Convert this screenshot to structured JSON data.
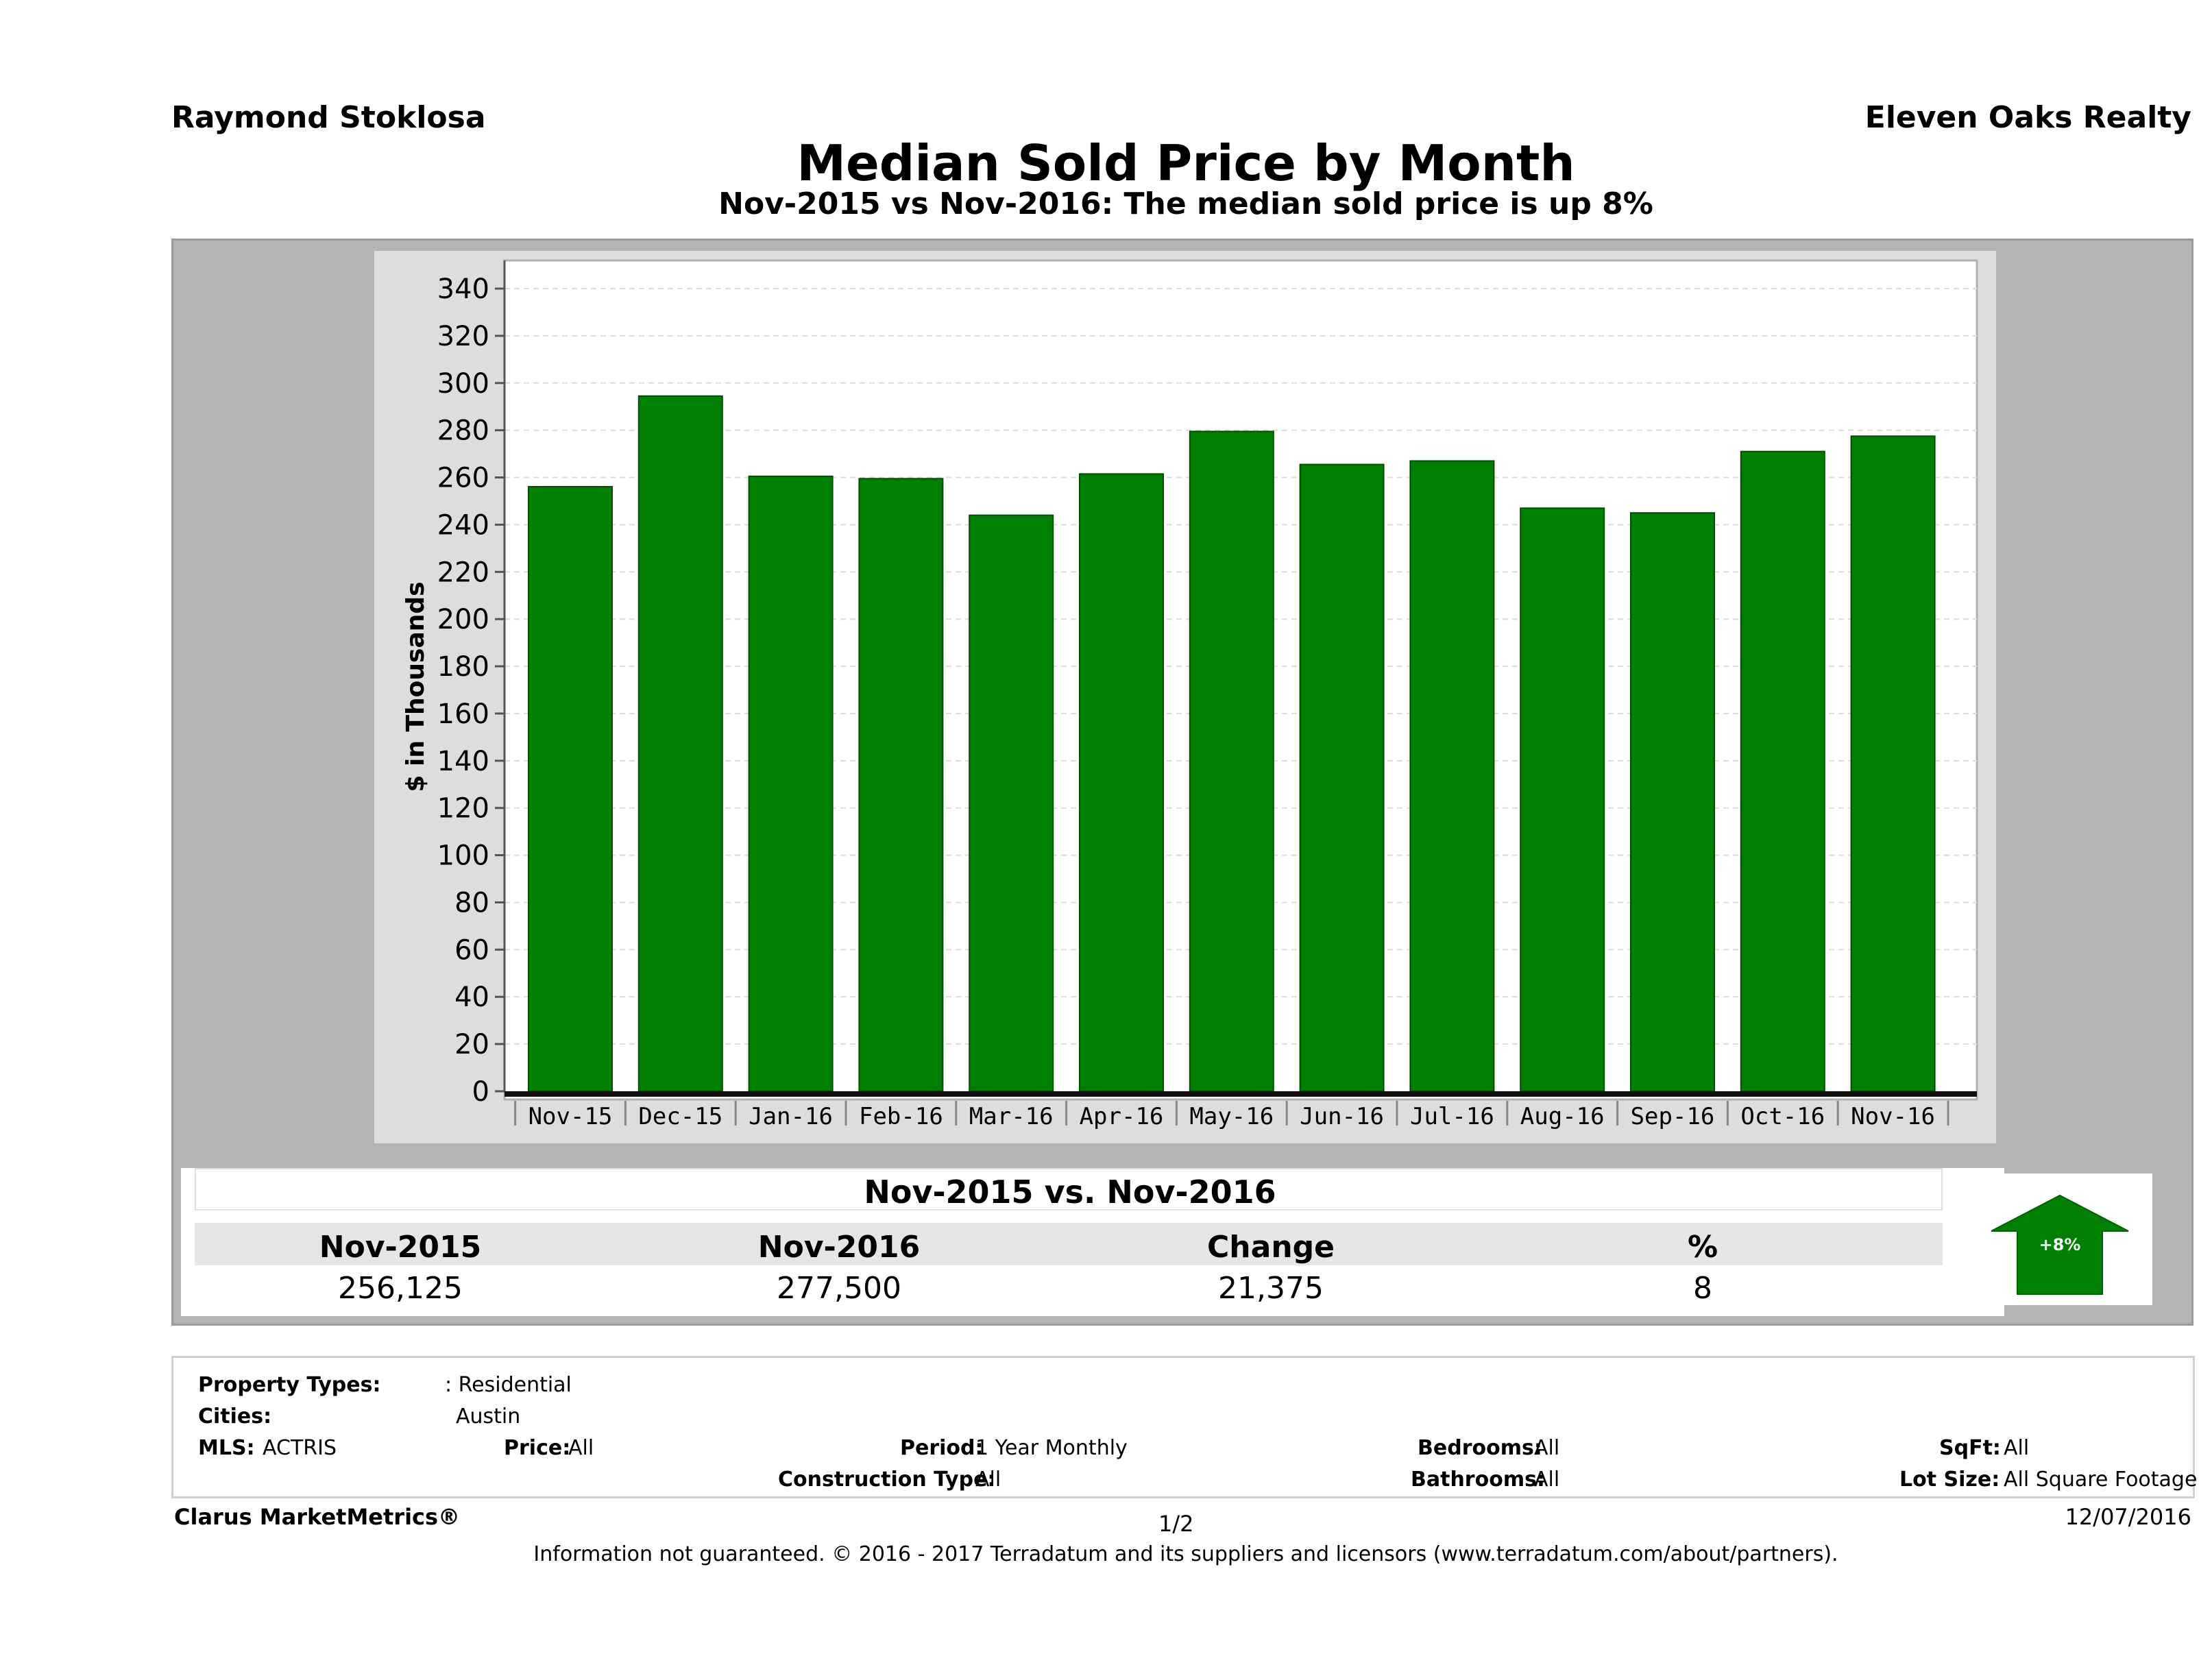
{
  "header": {
    "agent": "Raymond Stoklosa",
    "brokerage": "Eleven Oaks Realty",
    "title": "Median Sold Price by Month",
    "subtitle": "Nov-2015 vs Nov-2016: The median sold price is up 8%"
  },
  "chart_data": {
    "type": "bar",
    "categories": [
      "Nov-15",
      "Dec-15",
      "Jan-16",
      "Feb-16",
      "Mar-16",
      "Apr-16",
      "May-16",
      "Jun-16",
      "Jul-16",
      "Aug-16",
      "Sep-16",
      "Oct-16",
      "Nov-16"
    ],
    "values": [
      256.1,
      294.5,
      260.5,
      259.5,
      244,
      261.5,
      279.5,
      265.5,
      267,
      247,
      245,
      271,
      277.5
    ],
    "ylabel": "$ in Thousands",
    "ylim": [
      0,
      350
    ],
    "yticks": [
      0,
      20,
      40,
      60,
      80,
      100,
      120,
      140,
      160,
      180,
      200,
      220,
      240,
      260,
      280,
      300,
      320,
      340
    ],
    "grid": true,
    "bar_color": "#008000"
  },
  "summary": {
    "title": "Nov-2015 vs. Nov-2016",
    "headers": [
      "Nov-2015",
      "Nov-2016",
      "Change",
      "%"
    ],
    "values": [
      "256,125",
      "277,500",
      "21,375",
      "8"
    ],
    "badge": "+8%",
    "badge_color": "#008000"
  },
  "criteria": {
    "property_types_label": "Property Types:",
    "property_types_value": ": Residential",
    "cities_label": "Cities:",
    "cities_value": "Austin",
    "mls_label": "MLS:",
    "mls_value": "ACTRIS",
    "price_label": "Price:",
    "price_value": "All",
    "period_label": "Period:",
    "period_value": "1 Year Monthly",
    "bedrooms_label": "Bedrooms:",
    "bedrooms_value": "All",
    "sqft_label": "SqFt:",
    "sqft_value": "All",
    "construction_label": "Construction Type:",
    "construction_value": "All",
    "bathrooms_label": "Bathrooms:",
    "bathrooms_value": "All",
    "lot_label": "Lot Size:",
    "lot_value": "All Square Footage"
  },
  "footer": {
    "brand": "Clarus MarketMetrics®",
    "page": "1/2",
    "date": "12/07/2016",
    "disclaimer": "Information not guaranteed. © 2016 - 2017 Terradatum and its suppliers and licensors (www.terradatum.com/about/partners)."
  }
}
